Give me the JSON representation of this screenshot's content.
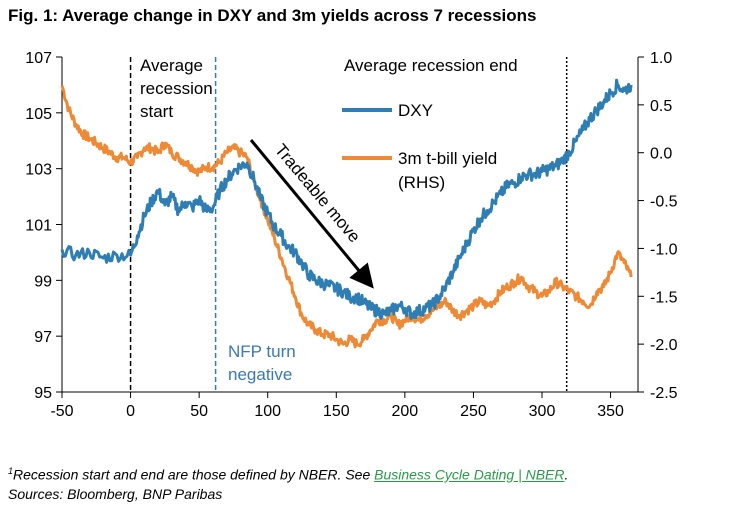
{
  "title": "Fig. 1: Average change in DXY and 3m yields across 7 recessions",
  "chart_data": {
    "type": "line",
    "title": "Fig. 1: Average change in DXY and 3m yields across 7 recessions",
    "x_ticks": [
      -50,
      0,
      50,
      100,
      150,
      200,
      250,
      300,
      350
    ],
    "xlim": [
      -50,
      370
    ],
    "y_left": {
      "ticks": [
        "95",
        "97",
        "99",
        "101",
        "103",
        "105",
        "107"
      ],
      "lim": [
        95,
        107
      ]
    },
    "y_right": {
      "ticks": [
        "-2.5",
        "-2.0",
        "-1.5",
        "-1.0",
        "-0.5",
        "0.0",
        "0.5",
        "1.0"
      ],
      "lim": [
        -2.5,
        1.0
      ]
    },
    "grid": false,
    "legend_position": "top-right",
    "series": [
      {
        "name": "DXY",
        "axis": "left",
        "color": "#2e7eb3",
        "points": [
          [
            -50,
            100.1
          ],
          [
            -40,
            99.9
          ],
          [
            -30,
            100.0
          ],
          [
            -20,
            99.8
          ],
          [
            -10,
            99.9
          ],
          [
            0,
            99.9
          ],
          [
            5,
            100.6
          ],
          [
            10,
            101.3
          ],
          [
            15,
            101.8
          ],
          [
            20,
            102.2
          ],
          [
            25,
            101.7
          ],
          [
            30,
            102.0
          ],
          [
            35,
            101.5
          ],
          [
            40,
            101.8
          ],
          [
            45,
            101.6
          ],
          [
            50,
            101.9
          ],
          [
            55,
            101.5
          ],
          [
            60,
            101.6
          ],
          [
            65,
            102.2
          ],
          [
            70,
            102.6
          ],
          [
            75,
            102.9
          ],
          [
            80,
            103.1
          ],
          [
            85,
            103.2
          ],
          [
            90,
            102.6
          ],
          [
            95,
            101.9
          ],
          [
            100,
            101.4
          ],
          [
            105,
            100.9
          ],
          [
            110,
            100.6
          ],
          [
            115,
            100.2
          ],
          [
            120,
            100.0
          ],
          [
            125,
            99.6
          ],
          [
            130,
            99.2
          ],
          [
            135,
            99.0
          ],
          [
            140,
            98.9
          ],
          [
            145,
            98.8
          ],
          [
            150,
            98.7
          ],
          [
            155,
            98.6
          ],
          [
            160,
            98.4
          ],
          [
            165,
            98.4
          ],
          [
            170,
            98.2
          ],
          [
            175,
            98.0
          ],
          [
            180,
            97.9
          ],
          [
            185,
            97.8
          ],
          [
            190,
            97.9
          ],
          [
            195,
            98.1
          ],
          [
            200,
            98.0
          ],
          [
            205,
            97.8
          ],
          [
            210,
            97.9
          ],
          [
            215,
            98.0
          ],
          [
            220,
            98.1
          ],
          [
            225,
            98.4
          ],
          [
            230,
            98.8
          ],
          [
            235,
            99.3
          ],
          [
            240,
            99.8
          ],
          [
            245,
            100.3
          ],
          [
            250,
            100.8
          ],
          [
            255,
            101.2
          ],
          [
            260,
            101.5
          ],
          [
            265,
            101.8
          ],
          [
            270,
            102.1
          ],
          [
            275,
            102.4
          ],
          [
            280,
            102.5
          ],
          [
            285,
            102.7
          ],
          [
            290,
            102.8
          ],
          [
            295,
            102.8
          ],
          [
            300,
            102.9
          ],
          [
            305,
            103.0
          ],
          [
            310,
            103.1
          ],
          [
            315,
            103.3
          ],
          [
            320,
            103.6
          ],
          [
            325,
            104.0
          ],
          [
            330,
            104.4
          ],
          [
            335,
            104.8
          ],
          [
            340,
            105.1
          ],
          [
            345,
            105.4
          ],
          [
            350,
            105.7
          ],
          [
            355,
            106.0
          ],
          [
            360,
            105.8
          ],
          [
            365,
            106.0
          ]
        ]
      },
      {
        "name": "3m t-bill yield (RHS)",
        "axis": "right",
        "color": "#ee8a36",
        "points": [
          [
            -50,
            0.7
          ],
          [
            -45,
            0.45
          ],
          [
            -40,
            0.3
          ],
          [
            -35,
            0.2
          ],
          [
            -30,
            0.15
          ],
          [
            -25,
            0.1
          ],
          [
            -20,
            0.05
          ],
          [
            -15,
            0.0
          ],
          [
            -10,
            -0.05
          ],
          [
            -5,
            -0.05
          ],
          [
            0,
            -0.1
          ],
          [
            5,
            -0.05
          ],
          [
            10,
            0.05
          ],
          [
            15,
            0.05
          ],
          [
            20,
            0.0
          ],
          [
            25,
            0.1
          ],
          [
            30,
            0.0
          ],
          [
            35,
            -0.05
          ],
          [
            40,
            -0.1
          ],
          [
            45,
            -0.15
          ],
          [
            50,
            -0.2
          ],
          [
            55,
            -0.15
          ],
          [
            60,
            -0.15
          ],
          [
            65,
            -0.1
          ],
          [
            70,
            0.0
          ],
          [
            75,
            0.05
          ],
          [
            80,
            0.0
          ],
          [
            85,
            -0.05
          ],
          [
            90,
            -0.3
          ],
          [
            95,
            -0.5
          ],
          [
            100,
            -0.7
          ],
          [
            105,
            -0.9
          ],
          [
            110,
            -1.1
          ],
          [
            115,
            -1.3
          ],
          [
            120,
            -1.5
          ],
          [
            125,
            -1.7
          ],
          [
            130,
            -1.8
          ],
          [
            135,
            -1.85
          ],
          [
            140,
            -1.9
          ],
          [
            145,
            -1.9
          ],
          [
            150,
            -1.95
          ],
          [
            155,
            -2.0
          ],
          [
            160,
            -1.95
          ],
          [
            165,
            -2.0
          ],
          [
            170,
            -1.95
          ],
          [
            175,
            -1.85
          ],
          [
            180,
            -1.75
          ],
          [
            185,
            -1.75
          ],
          [
            190,
            -1.7
          ],
          [
            195,
            -1.8
          ],
          [
            200,
            -1.75
          ],
          [
            205,
            -1.7
          ],
          [
            210,
            -1.75
          ],
          [
            215,
            -1.7
          ],
          [
            220,
            -1.65
          ],
          [
            225,
            -1.6
          ],
          [
            230,
            -1.55
          ],
          [
            235,
            -1.65
          ],
          [
            240,
            -1.7
          ],
          [
            245,
            -1.65
          ],
          [
            250,
            -1.6
          ],
          [
            255,
            -1.55
          ],
          [
            260,
            -1.6
          ],
          [
            265,
            -1.55
          ],
          [
            270,
            -1.45
          ],
          [
            275,
            -1.4
          ],
          [
            280,
            -1.35
          ],
          [
            285,
            -1.3
          ],
          [
            290,
            -1.4
          ],
          [
            295,
            -1.45
          ],
          [
            300,
            -1.5
          ],
          [
            305,
            -1.45
          ],
          [
            310,
            -1.35
          ],
          [
            315,
            -1.4
          ],
          [
            320,
            -1.45
          ],
          [
            325,
            -1.5
          ],
          [
            330,
            -1.55
          ],
          [
            335,
            -1.6
          ],
          [
            340,
            -1.45
          ],
          [
            345,
            -1.4
          ],
          [
            350,
            -1.25
          ],
          [
            355,
            -1.05
          ],
          [
            360,
            -1.15
          ],
          [
            365,
            -1.3
          ]
        ]
      }
    ],
    "vlines": [
      {
        "x": 0,
        "color": "#000000",
        "style": "dash"
      },
      {
        "x": 62,
        "color": "#3b78b8",
        "style": "dash"
      },
      {
        "x": 318,
        "color": "#000000",
        "style": "dot"
      }
    ],
    "annotations": {
      "recession_start": [
        "Average",
        "recession",
        "start"
      ],
      "recession_end": "Average recession end",
      "nfp": [
        "NFP turn",
        "negative"
      ],
      "tradeable_move": "Tradeable move"
    }
  },
  "footnotes": {
    "line1_sup": "1",
    "line1_text": "Recession start and end are those defined by NBER. See ",
    "line1_link": "Business Cycle Dating | NBER",
    "line1_end": ".",
    "line2": "Sources: Bloomberg, BNP Paribas"
  }
}
